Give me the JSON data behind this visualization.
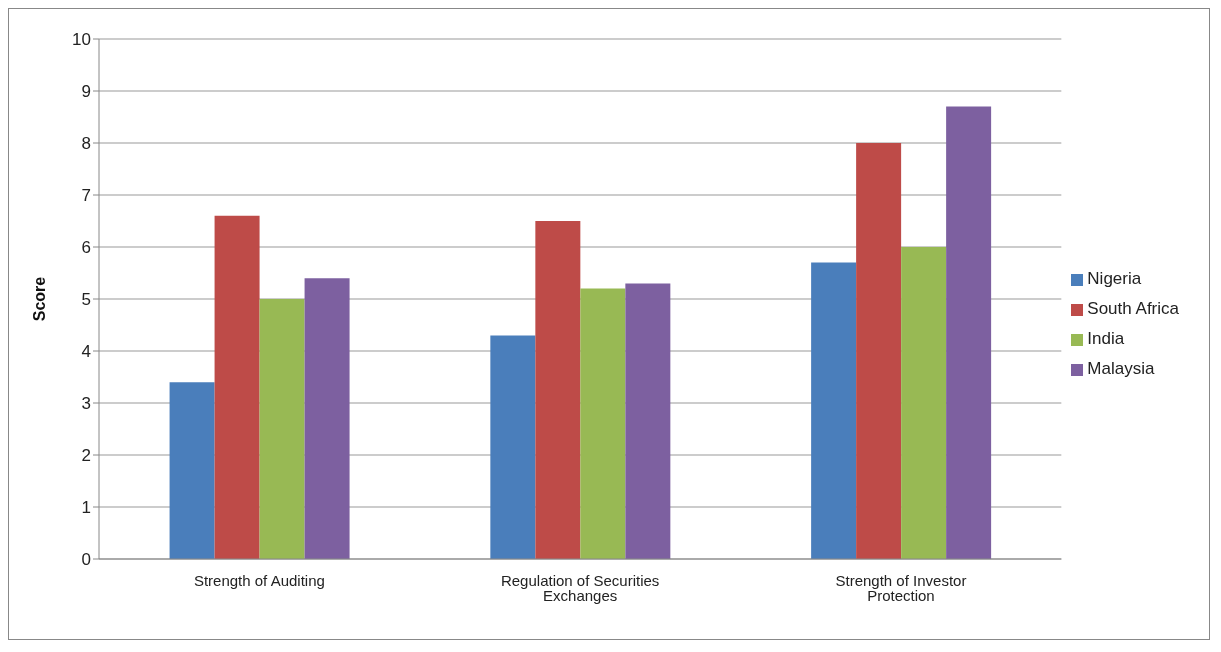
{
  "chart_data": {
    "type": "bar",
    "ylabel": "Score",
    "categories": [
      "Strength of Auditing",
      "Regulation of Securities Exchanges",
      "Strength of Investor Protection"
    ],
    "series": [
      {
        "name": "Nigeria",
        "color": "#4a7ebb",
        "values": [
          3.4,
          4.3,
          5.7
        ]
      },
      {
        "name": "South Africa",
        "color": "#be4b48",
        "values": [
          6.6,
          6.5,
          8.0
        ]
      },
      {
        "name": "India",
        "color": "#98b954",
        "values": [
          5.0,
          5.2,
          6.0
        ]
      },
      {
        "name": "Malaysia",
        "color": "#7d60a0",
        "values": [
          5.4,
          5.3,
          8.7
        ]
      }
    ],
    "ylim": [
      0,
      10
    ],
    "yticks": [
      0,
      1,
      2,
      3,
      4,
      5,
      6,
      7,
      8,
      9,
      10
    ],
    "grid": "y",
    "legend": "right"
  }
}
